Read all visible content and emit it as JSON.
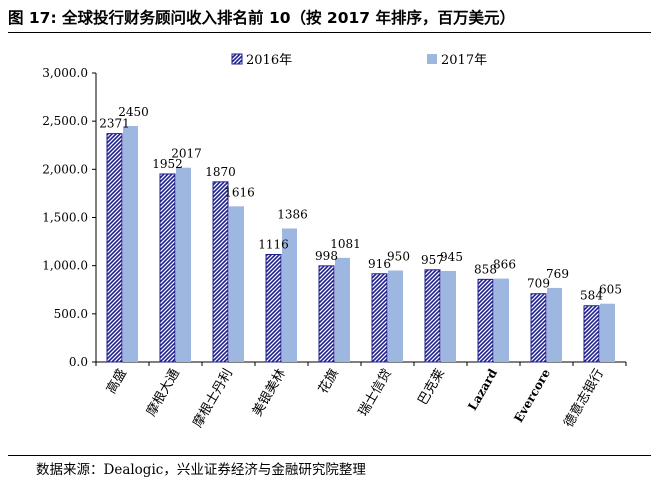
{
  "title": "图 17:  全球投行财务顾问收入排名前 10（按 2017 年排序，百万美元）",
  "source": "数据来源：Dealogic，兴业证券经济与金融研究院整理",
  "colors": {
    "series_2016": "#1f1f8f",
    "series_2017": "#9db7e0",
    "axis": "#000000"
  },
  "chart_data": {
    "type": "bar",
    "categories": [
      "高盛",
      "摩根大通",
      "摩根士丹利",
      "美银美林",
      "花旗",
      "瑞士信贷",
      "巴克莱",
      "Lazard",
      "Evercore",
      "德意志银行"
    ],
    "series": [
      {
        "name": "2016年",
        "values": [
          2371,
          1952,
          1870,
          1116,
          998,
          916,
          957,
          858,
          709,
          584
        ],
        "pattern": "hatched"
      },
      {
        "name": "2017年",
        "values": [
          2450,
          2017,
          1616,
          1386,
          1081,
          950,
          945,
          866,
          769,
          605
        ],
        "pattern": "solid"
      }
    ],
    "y_ticks": [
      "0.0",
      "500.0",
      "1,000.0",
      "1,500.0",
      "2,000.0",
      "2,500.0",
      "3,000.0"
    ],
    "ylim": [
      0,
      3000
    ],
    "legend_position": "top",
    "grid": false
  }
}
